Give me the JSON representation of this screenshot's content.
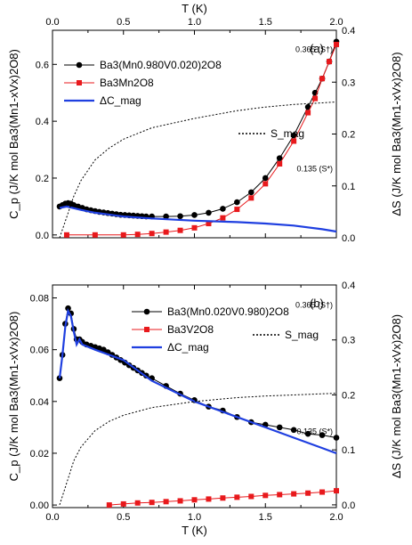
{
  "chart_data": [
    {
      "type": "line",
      "panel_label": "(a)",
      "xlabel": "T (K)",
      "xlim": [
        0,
        2.0
      ],
      "x_ticks": [
        "0.0",
        "0.5",
        "1.0",
        "1.5",
        "2.0"
      ],
      "ylabel": "C_p (J/K mol Ba3(Mn1-xVx)2O8)",
      "ylim": [
        -0.01,
        0.72
      ],
      "y_ticks": [
        "0.0",
        "0.2",
        "0.4",
        "0.6"
      ],
      "y2label": "ΔS (J/K mol Ba3(Mn1-xVx)2O8)",
      "y2lim": [
        0,
        0.4
      ],
      "y2_ticks": [
        "0.0",
        "0.1",
        "0.2",
        "0.3",
        "0.4"
      ],
      "annotations": [
        "0.365 (S†)",
        "0.135 (S*)"
      ],
      "annotation_values": [
        0.365,
        0.135
      ],
      "grid": false,
      "legend_position": "top-left",
      "series": [
        {
          "name": "Ba3(Mn0.980V0.020)2O8",
          "axis": "left",
          "color": "#000000",
          "marker": "circle",
          "x": [
            0.05,
            0.07,
            0.09,
            0.11,
            0.13,
            0.15,
            0.18,
            0.21,
            0.24,
            0.27,
            0.3,
            0.33,
            0.36,
            0.39,
            0.42,
            0.45,
            0.48,
            0.51,
            0.54,
            0.57,
            0.6,
            0.63,
            0.66,
            0.7,
            0.8,
            0.9,
            1.0,
            1.1,
            1.2,
            1.3,
            1.4,
            1.5,
            1.6,
            1.7,
            1.8,
            1.85,
            1.9,
            1.95,
            2.0
          ],
          "y": [
            0.1,
            0.105,
            0.11,
            0.112,
            0.11,
            0.105,
            0.1,
            0.095,
            0.09,
            0.087,
            0.084,
            0.081,
            0.079,
            0.077,
            0.075,
            0.073,
            0.071,
            0.07,
            0.069,
            0.068,
            0.067,
            0.066,
            0.065,
            0.065,
            0.065,
            0.066,
            0.07,
            0.078,
            0.092,
            0.115,
            0.15,
            0.2,
            0.27,
            0.35,
            0.45,
            0.5,
            0.55,
            0.61,
            0.68
          ]
        },
        {
          "name": "Ba3Mn2O8",
          "axis": "left",
          "color": "#e8191c",
          "marker": "square",
          "x": [
            0.1,
            0.3,
            0.5,
            0.6,
            0.7,
            0.8,
            0.9,
            1.0,
            1.1,
            1.2,
            1.3,
            1.4,
            1.5,
            1.6,
            1.7,
            1.8,
            1.85,
            1.9,
            1.95,
            2.0
          ],
          "y": [
            0.0,
            0.0,
            0.0,
            0.002,
            0.005,
            0.01,
            0.016,
            0.025,
            0.04,
            0.06,
            0.09,
            0.13,
            0.18,
            0.25,
            0.33,
            0.43,
            0.48,
            0.55,
            0.61,
            0.67
          ]
        },
        {
          "name": "ΔC_mag",
          "axis": "left",
          "color": "#1f3fe0",
          "marker": "none",
          "x": [
            0.05,
            0.1,
            0.2,
            0.3,
            0.5,
            0.7,
            1.0,
            1.3,
            1.5,
            1.7,
            1.9,
            2.0
          ],
          "y": [
            0.095,
            0.1,
            0.088,
            0.078,
            0.065,
            0.058,
            0.05,
            0.045,
            0.04,
            0.033,
            0.02,
            0.012
          ]
        },
        {
          "name": "S_mag",
          "axis": "right",
          "color": "#000000",
          "marker": "none",
          "style": "dotted",
          "x": [
            0.05,
            0.1,
            0.15,
            0.2,
            0.3,
            0.4,
            0.5,
            0.7,
            1.0,
            1.3,
            1.5,
            1.7,
            1.9,
            2.0
          ],
          "y": [
            0.0,
            0.04,
            0.08,
            0.11,
            0.15,
            0.173,
            0.19,
            0.212,
            0.23,
            0.245,
            0.252,
            0.257,
            0.26,
            0.262
          ]
        }
      ]
    },
    {
      "type": "line",
      "panel_label": "(b)",
      "xlabel": "T (K)",
      "xlim": [
        0,
        2.0
      ],
      "x_ticks": [
        "0.0",
        "0.5",
        "1.0",
        "1.5",
        "2.0"
      ],
      "ylabel": "C_p (J/K mol Ba3(Mn1-xVx)2O8)",
      "ylim": [
        -0.001,
        0.085
      ],
      "y_ticks": [
        "0.00",
        "0.02",
        "0.04",
        "0.06",
        "0.08"
      ],
      "y2label": "ΔS (J/K mol Ba3(Mn1-xVx)2O8)",
      "y2lim": [
        -0.005,
        0.4
      ],
      "y2_ticks": [
        "0.0",
        "0.1",
        "0.2",
        "0.3",
        "0.4"
      ],
      "annotations": [
        "0.365 (S†)",
        "0.135 (S*)"
      ],
      "annotation_values": [
        0.365,
        0.135
      ],
      "grid": false,
      "legend_position": "top-right",
      "series": [
        {
          "name": "Ba3(Mn0.020V0.980)2O8",
          "axis": "left",
          "color": "#000000",
          "marker": "circle",
          "x": [
            0.05,
            0.07,
            0.09,
            0.11,
            0.13,
            0.15,
            0.17,
            0.19,
            0.21,
            0.24,
            0.27,
            0.3,
            0.33,
            0.36,
            0.39,
            0.42,
            0.45,
            0.48,
            0.51,
            0.54,
            0.57,
            0.6,
            0.63,
            0.66,
            0.7,
            0.8,
            0.9,
            1.0,
            1.1,
            1.2,
            1.3,
            1.4,
            1.5,
            1.6,
            1.7,
            1.8,
            1.9,
            2.0
          ],
          "y": [
            0.049,
            0.058,
            0.07,
            0.076,
            0.074,
            0.068,
            0.064,
            0.064,
            0.063,
            0.062,
            0.0615,
            0.061,
            0.0605,
            0.06,
            0.059,
            0.058,
            0.057,
            0.056,
            0.055,
            0.054,
            0.053,
            0.052,
            0.051,
            0.05,
            0.049,
            0.046,
            0.043,
            0.0405,
            0.038,
            0.0365,
            0.034,
            0.032,
            0.031,
            0.03,
            0.029,
            0.0275,
            0.027,
            0.026
          ]
        },
        {
          "name": "Ba3V2O8",
          "axis": "left",
          "color": "#e8191c",
          "marker": "square",
          "x": [
            0.4,
            0.5,
            0.6,
            0.7,
            0.8,
            0.9,
            1.0,
            1.1,
            1.2,
            1.3,
            1.4,
            1.5,
            1.6,
            1.7,
            1.8,
            1.9,
            2.0
          ],
          "y": [
            0.0,
            0.0004,
            0.0008,
            0.001,
            0.0013,
            0.0016,
            0.002,
            0.0023,
            0.0027,
            0.003,
            0.0033,
            0.0037,
            0.004,
            0.0043,
            0.0046,
            0.005,
            0.0055
          ]
        },
        {
          "name": "ΔC_mag",
          "axis": "left",
          "color": "#1f3fe0",
          "marker": "none",
          "x": [
            0.05,
            0.07,
            0.09,
            0.11,
            0.13,
            0.15,
            0.17,
            0.19,
            0.21,
            0.3,
            0.5,
            0.7,
            1.0,
            1.3,
            1.5,
            1.7,
            1.9,
            2.0
          ],
          "y": [
            0.049,
            0.058,
            0.069,
            0.075,
            0.073,
            0.067,
            0.062,
            0.064,
            0.062,
            0.06,
            0.056,
            0.048,
            0.04,
            0.034,
            0.03,
            0.026,
            0.022,
            0.02
          ]
        },
        {
          "name": "S_mag",
          "axis": "right",
          "color": "#000000",
          "marker": "none",
          "style": "dotted",
          "x": [
            0.05,
            0.1,
            0.15,
            0.2,
            0.3,
            0.4,
            0.5,
            0.7,
            1.0,
            1.3,
            1.5,
            1.7,
            1.9,
            2.0
          ],
          "y": [
            0.0,
            0.04,
            0.08,
            0.105,
            0.135,
            0.152,
            0.163,
            0.177,
            0.188,
            0.195,
            0.198,
            0.2,
            0.202,
            0.203
          ]
        }
      ]
    }
  ]
}
